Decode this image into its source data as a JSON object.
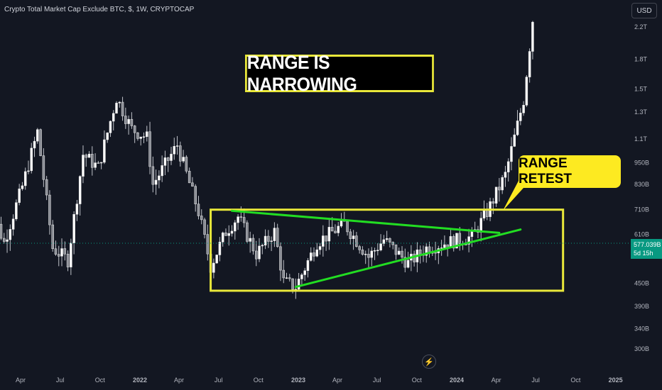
{
  "header": {
    "title": "Crypto Total Market Cap Exclude BTC, $, 1W, CRYPTOCAP",
    "currency": "USD"
  },
  "price_badge": {
    "value": "577.039B",
    "countdown": "5d 15h"
  },
  "annotations": {
    "main": "RANGE IS NARROWING",
    "retest": "RANGE RETEST"
  },
  "colors": {
    "background": "#131722",
    "candle": "#e6e6e6",
    "box": "#e9e83a",
    "trendline": "#22dd22",
    "badge": "#089981",
    "callout": "#fdea21"
  },
  "icons": {
    "lightning": "lightning-icon"
  },
  "chart_data": {
    "type": "candlestick",
    "title": "Crypto Total Market Cap Exclude BTC, $, 1W, CRYPTOCAP",
    "y_scale": "log",
    "y_ticks": [
      {
        "label": "2.2T",
        "value": 2200
      },
      {
        "label": "1.8T",
        "value": 1800
      },
      {
        "label": "1.5T",
        "value": 1500
      },
      {
        "label": "1.3T",
        "value": 1300
      },
      {
        "label": "1.1T",
        "value": 1100
      },
      {
        "label": "950B",
        "value": 950
      },
      {
        "label": "830B",
        "value": 830
      },
      {
        "label": "710B",
        "value": 710
      },
      {
        "label": "610B",
        "value": 610
      },
      {
        "label": "450B",
        "value": 450
      },
      {
        "label": "390B",
        "value": 390
      },
      {
        "label": "340B",
        "value": 340
      },
      {
        "label": "300B",
        "value": 300
      }
    ],
    "x_ticks": [
      {
        "label": "Apr",
        "date": "2021-04-01",
        "bold": false
      },
      {
        "label": "Jul",
        "date": "2021-07-01",
        "bold": false
      },
      {
        "label": "Oct",
        "date": "2021-10-01",
        "bold": false
      },
      {
        "label": "2022",
        "date": "2022-01-01",
        "bold": true
      },
      {
        "label": "Apr",
        "date": "2022-04-01",
        "bold": false
      },
      {
        "label": "Jul",
        "date": "2022-07-01",
        "bold": false
      },
      {
        "label": "Oct",
        "date": "2022-10-01",
        "bold": false
      },
      {
        "label": "2023",
        "date": "2023-01-01",
        "bold": true
      },
      {
        "label": "Apr",
        "date": "2023-04-01",
        "bold": false
      },
      {
        "label": "Jul",
        "date": "2023-07-01",
        "bold": false
      },
      {
        "label": "Oct",
        "date": "2023-10-01",
        "bold": false
      },
      {
        "label": "2024",
        "date": "2024-01-01",
        "bold": true
      },
      {
        "label": "Apr",
        "date": "2024-04-01",
        "bold": false
      },
      {
        "label": "Jul",
        "date": "2024-07-01",
        "bold": false
      },
      {
        "label": "Oct",
        "date": "2024-10-01",
        "bold": false
      },
      {
        "label": "2025",
        "date": "2025-01-01",
        "bold": true
      }
    ],
    "last_value": 577.039,
    "range_box": {
      "start": "2022-06-13",
      "end": "2024-09-02",
      "low": 430,
      "high": 710
    },
    "trendlines": [
      {
        "start": {
          "date": "2022-08-01",
          "value": 705
        },
        "end": {
          "date": "2024-04-08",
          "value": 615
        }
      },
      {
        "start": {
          "date": "2022-12-26",
          "value": 440
        },
        "end": {
          "date": "2024-05-27",
          "value": 628
        }
      }
    ],
    "anchors": [
      {
        "date": "2021-01-04",
        "value": 460
      },
      {
        "date": "2021-02-08",
        "value": 640
      },
      {
        "date": "2021-02-22",
        "value": 580
      },
      {
        "date": "2021-04-05",
        "value": 820
      },
      {
        "date": "2021-05-10",
        "value": 1150
      },
      {
        "date": "2021-06-14",
        "value": 560
      },
      {
        "date": "2021-07-19",
        "value": 520
      },
      {
        "date": "2021-08-23",
        "value": 1000
      },
      {
        "date": "2021-09-27",
        "value": 920
      },
      {
        "date": "2021-11-08",
        "value": 1420
      },
      {
        "date": "2021-12-13",
        "value": 1170
      },
      {
        "date": "2022-01-17",
        "value": 1110
      },
      {
        "date": "2022-01-31",
        "value": 830
      },
      {
        "date": "2022-03-28",
        "value": 1060
      },
      {
        "date": "2022-05-16",
        "value": 700
      },
      {
        "date": "2022-06-13",
        "value": 500
      },
      {
        "date": "2022-07-18",
        "value": 620
      },
      {
        "date": "2022-08-15",
        "value": 680
      },
      {
        "date": "2022-09-26",
        "value": 540
      },
      {
        "date": "2022-11-07",
        "value": 620
      },
      {
        "date": "2022-11-28",
        "value": 455
      },
      {
        "date": "2022-12-26",
        "value": 440
      },
      {
        "date": "2023-02-13",
        "value": 580
      },
      {
        "date": "2023-04-17",
        "value": 650
      },
      {
        "date": "2023-06-12",
        "value": 530
      },
      {
        "date": "2023-07-17",
        "value": 590
      },
      {
        "date": "2023-09-11",
        "value": 510
      },
      {
        "date": "2023-10-23",
        "value": 560
      },
      {
        "date": "2023-12-11",
        "value": 580
      },
      {
        "date": "2024-02-05",
        "value": 600
      },
      {
        "date": "2024-03-11",
        "value": 700
      },
      {
        "date": "2024-04-22",
        "value": 880
      },
      {
        "date": "2024-06-03",
        "value": 1400
      },
      {
        "date": "2024-06-24",
        "value": 2300
      }
    ]
  }
}
